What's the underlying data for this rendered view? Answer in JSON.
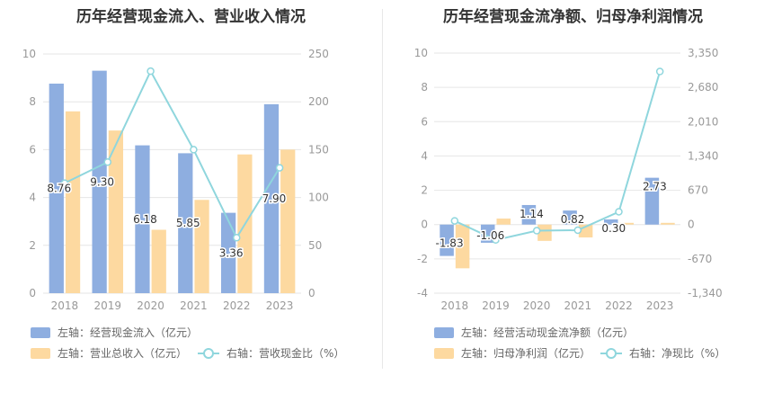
{
  "colors": {
    "blue_bar": "#8eaee0",
    "orange_bar": "#fdd9a0",
    "line": "#8fd6dd",
    "grid": "#e6e6e6",
    "axis_text": "#999999"
  },
  "chart_data": [
    {
      "type": "bar",
      "title": "历年经营现金流入、营业收入情况",
      "categories": [
        "2018",
        "2019",
        "2020",
        "2021",
        "2022",
        "2023"
      ],
      "left_axis": {
        "ylim": [
          0,
          10
        ],
        "ticks": [
          "0",
          "2",
          "4",
          "6",
          "8",
          "10"
        ]
      },
      "right_axis": {
        "ylim": [
          0,
          250
        ],
        "ticks": [
          "0",
          "50",
          "100",
          "150",
          "200",
          "250"
        ]
      },
      "grid": true,
      "series": [
        {
          "name": "左轴：经营现金流入（亿元）",
          "type": "bar",
          "axis": "left",
          "color": "#8eaee0",
          "values": [
            8.76,
            9.3,
            6.18,
            5.85,
            3.36,
            7.9
          ],
          "labels": [
            "8.76",
            "9.30",
            "6.18",
            "5.85",
            "3.36",
            "7.90"
          ]
        },
        {
          "name": "左轴：营业总收入（亿元）",
          "type": "bar",
          "axis": "left",
          "color": "#fdd9a0",
          "values": [
            7.6,
            6.8,
            2.65,
            3.9,
            5.8,
            6.0
          ]
        },
        {
          "name": "右轴：营收现金比（%）",
          "type": "line",
          "axis": "right",
          "color": "#8fd6dd",
          "values": [
            115,
            137,
            232,
            150,
            58,
            131
          ]
        }
      ],
      "legend": [
        {
          "label": "左轴：经营现金流入（亿元）",
          "kind": "swatch",
          "color": "#8eaee0"
        },
        {
          "label": "左轴：营业总收入（亿元）",
          "kind": "swatch",
          "color": "#fdd9a0"
        },
        {
          "label": "右轴：营收现金比（%）",
          "kind": "line",
          "color": "#8fd6dd"
        }
      ],
      "legend_position": "bottom-left"
    },
    {
      "type": "bar",
      "title": "历年经营现金流净额、归母净利润情况",
      "categories": [
        "2018",
        "2019",
        "2020",
        "2021",
        "2022",
        "2023"
      ],
      "left_axis": {
        "ylim": [
          -4,
          10
        ],
        "ticks": [
          "-4",
          "-2",
          "0",
          "2",
          "4",
          "6",
          "8",
          "10"
        ]
      },
      "right_axis": {
        "ylim": [
          -1340,
          3350
        ],
        "ticks": [
          "-1,340",
          "-670",
          "0",
          "670",
          "1,340",
          "2,010",
          "2,680",
          "3,350"
        ]
      },
      "grid": true,
      "series": [
        {
          "name": "左轴：经营活动现金流净额（亿元）",
          "type": "bar",
          "axis": "left",
          "color": "#8eaee0",
          "values": [
            -1.83,
            -1.06,
            1.14,
            0.82,
            0.3,
            2.73
          ],
          "labels": [
            "-1.83",
            "-1.06",
            "1.14",
            "0.82",
            "0.30",
            "2.73"
          ]
        },
        {
          "name": "左轴：归母净利润（亿元）",
          "type": "bar",
          "axis": "left",
          "color": "#fdd9a0",
          "values": [
            -2.55,
            0.35,
            -0.95,
            -0.75,
            0.1,
            0.1
          ]
        },
        {
          "name": "右轴：净现比（%）",
          "type": "line",
          "axis": "right",
          "color": "#8fd6dd",
          "values": [
            72,
            -300,
            -120,
            -110,
            250,
            2990
          ]
        }
      ],
      "legend": [
        {
          "label": "左轴：经营活动现金流净额（亿元）",
          "kind": "swatch",
          "color": "#8eaee0"
        },
        {
          "label": "左轴：归母净利润（亿元）",
          "kind": "swatch",
          "color": "#fdd9a0"
        },
        {
          "label": "右轴：净现比（%）",
          "kind": "line",
          "color": "#8fd6dd"
        }
      ],
      "legend_position": "bottom-left"
    }
  ]
}
